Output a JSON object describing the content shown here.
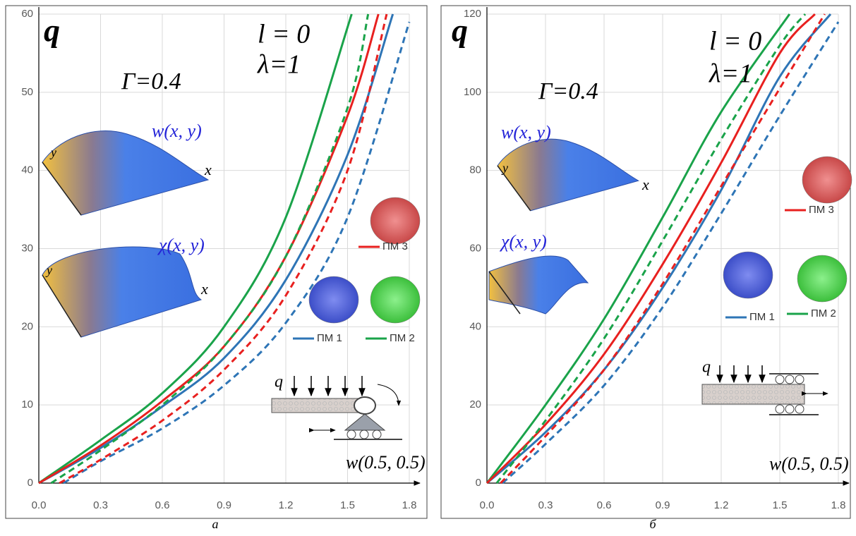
{
  "chart_data": [
    {
      "type": "line",
      "caption": "а",
      "y_label": "q",
      "x_label": "w(0.5, 0.5)",
      "params": [
        "l = 0",
        "λ=1",
        "Γ=0.4"
      ],
      "insets": [
        {
          "label": "w(x, y)",
          "x_axis": "x",
          "y_axis": "y"
        },
        {
          "label": "χ(x, y)",
          "x_axis": "x",
          "y_axis": "y"
        }
      ],
      "support_label": "q",
      "xlim": [
        0,
        1.8
      ],
      "xticks": [
        {
          "value": 0,
          "label": "0.0"
        },
        0.3,
        0.6,
        0.9,
        1.2,
        1.5,
        1.8
      ],
      "ylim": [
        0,
        60
      ],
      "yticks": [
        0,
        10,
        20,
        30,
        40,
        50,
        60
      ],
      "grid": true,
      "series": [
        {
          "name": "ПМ 1",
          "color": "#2e75b6",
          "dash": false,
          "x": [
            0,
            0.3,
            0.6,
            0.9,
            1.2,
            1.5,
            1.72
          ],
          "values": [
            0,
            4.5,
            9.8,
            16,
            26,
            42,
            60
          ]
        },
        {
          "name": "ПМ 2",
          "color": "#1aa34a",
          "dash": false,
          "x": [
            0,
            0.3,
            0.6,
            0.9,
            1.2,
            1.52
          ],
          "values": [
            0,
            5.5,
            11.5,
            20,
            34,
            60
          ]
        },
        {
          "name": "ПМ 3",
          "color": "#e8201f",
          "dash": false,
          "x": [
            0,
            0.3,
            0.6,
            0.9,
            1.2,
            1.5,
            1.65
          ],
          "values": [
            0,
            4.8,
            10.5,
            17.5,
            29,
            47,
            60
          ]
        },
        {
          "color": "#2e75b6",
          "dash": true,
          "x": [
            0.12,
            0.3,
            0.6,
            0.9,
            1.2,
            1.5,
            1.8
          ],
          "values": [
            0,
            2.8,
            7,
            12.5,
            20.5,
            34,
            59
          ]
        },
        {
          "color": "#1aa34a",
          "dash": true,
          "x": [
            0.06,
            0.3,
            0.6,
            0.9,
            1.2,
            1.5,
            1.6
          ],
          "values": [
            0,
            4.2,
            10,
            17.5,
            29,
            48,
            60
          ]
        },
        {
          "color": "#e8201f",
          "dash": true,
          "x": [
            0.1,
            0.3,
            0.6,
            0.9,
            1.2,
            1.5,
            1.69
          ],
          "values": [
            0,
            3,
            8,
            14.5,
            24,
            40,
            60
          ]
        }
      ]
    },
    {
      "type": "line",
      "caption": "б",
      "y_label": "q",
      "x_label": "w(0.5, 0.5)",
      "params": [
        "l = 0",
        "λ=1",
        "Γ=0.4"
      ],
      "insets": [
        {
          "label": "w(x, y)",
          "x_axis": "x",
          "y_axis": "y"
        },
        {
          "label": "χ(x, y)"
        }
      ],
      "support_label": "q",
      "xlim": [
        0,
        1.8
      ],
      "xticks": [
        {
          "value": 0,
          "label": "0.0"
        },
        0.3,
        0.6,
        0.9,
        1.2,
        1.5,
        1.8
      ],
      "ylim": [
        0,
        120
      ],
      "yticks": [
        0,
        20,
        40,
        60,
        80,
        100,
        120
      ],
      "grid": true,
      "series": [
        {
          "name": "ПМ 1",
          "color": "#2e75b6",
          "dash": false,
          "x": [
            0,
            0.3,
            0.6,
            0.9,
            1.2,
            1.5,
            1.76
          ],
          "values": [
            0,
            13,
            29,
            50,
            75,
            104,
            120
          ]
        },
        {
          "name": "ПМ 2",
          "color": "#1aa34a",
          "dash": false,
          "x": [
            0,
            0.3,
            0.6,
            0.9,
            1.2,
            1.55
          ],
          "values": [
            0,
            20,
            42,
            68,
            95,
            120
          ]
        },
        {
          "name": "ПМ 3",
          "color": "#e8201f",
          "dash": false,
          "x": [
            0,
            0.3,
            0.6,
            0.9,
            1.2,
            1.5,
            1.68
          ],
          "values": [
            0,
            15,
            33,
            56,
            82,
            110,
            120
          ]
        },
        {
          "color": "#2e75b6",
          "dash": true,
          "x": [
            0.08,
            0.3,
            0.6,
            0.9,
            1.2,
            1.5,
            1.8
          ],
          "values": [
            0,
            10,
            25,
            45,
            69,
            94,
            118
          ]
        },
        {
          "color": "#1aa34a",
          "dash": true,
          "x": [
            0.05,
            0.3,
            0.6,
            0.9,
            1.2,
            1.5,
            1.63
          ],
          "values": [
            0,
            16,
            37,
            62,
            88,
            112,
            120
          ]
        },
        {
          "color": "#e8201f",
          "dash": true,
          "x": [
            0.07,
            0.3,
            0.6,
            0.9,
            1.2,
            1.5,
            1.73
          ],
          "values": [
            0,
            12,
            29,
            51,
            76,
            101,
            120
          ]
        }
      ]
    }
  ]
}
